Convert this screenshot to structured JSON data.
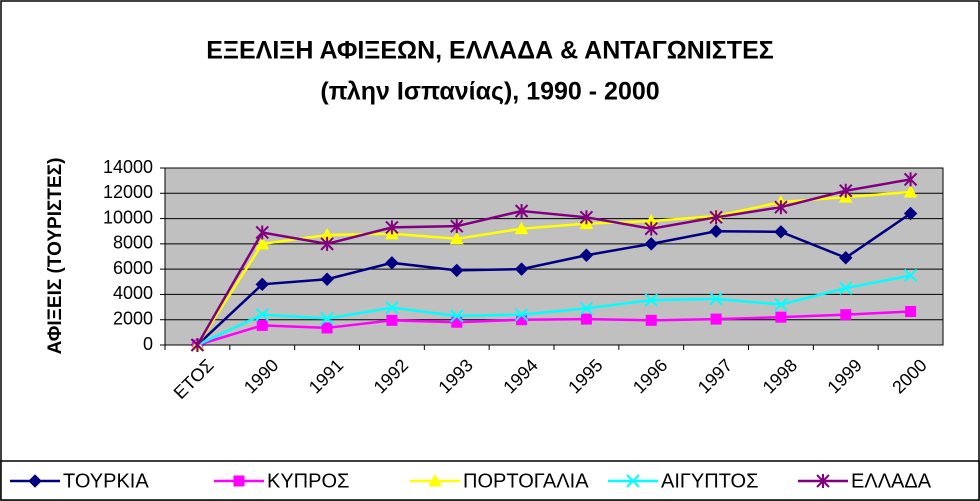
{
  "chart_data": {
    "type": "line",
    "title": [
      "ΕΞΕΛΙΞΗ ΑΦΙΞΕΩΝ, ΕΛΛΑΔΑ & ΑΝΤΑΓΩΝΙΣΤΕΣ",
      "(πλην Ισπανίας), 1990 - 2000"
    ],
    "y_label": "ΑΦΙΞΕΙΣ (ΤΟΥΡΙΣΤΕΣ)",
    "categories": [
      "ΕΤΟΣ",
      "1990",
      "1991",
      "1992",
      "1993",
      "1994",
      "1995",
      "1996",
      "1997",
      "1998",
      "1999",
      "2000"
    ],
    "series": [
      {
        "name": "ΤΟΥΡΚΙΑ",
        "color": "#000080",
        "marker": "diamond",
        "values": [
          0,
          4800,
          5200,
          6500,
          5900,
          6000,
          7100,
          8000,
          9000,
          8950,
          6900,
          10400
        ]
      },
      {
        "name": "ΚΥΠΡΟΣ",
        "color": "#ff00ff",
        "marker": "square",
        "values": [
          0,
          1550,
          1350,
          1950,
          1800,
          2000,
          2050,
          1950,
          2050,
          2200,
          2400,
          2650
        ]
      },
      {
        "name": "ΠΟΡΤΟΓΑΛΙΑ",
        "color": "#ffff00",
        "marker": "triangle",
        "values": [
          0,
          8000,
          8700,
          8800,
          8400,
          9200,
          9600,
          9800,
          10200,
          11300,
          11700,
          12100
        ]
      },
      {
        "name": "ΑΙΓΥΠΤΟΣ",
        "color": "#00ffff",
        "marker": "x",
        "values": [
          0,
          2400,
          2100,
          2950,
          2300,
          2400,
          2900,
          3550,
          3650,
          3200,
          4500,
          5500
        ]
      },
      {
        "name": "ΕΛΛΑΔΑ",
        "color": "#800080",
        "marker": "star",
        "values": [
          0,
          8900,
          8000,
          9300,
          9400,
          10600,
          10100,
          9200,
          10100,
          10900,
          12200,
          13100
        ]
      }
    ],
    "ylim": [
      0,
      14000
    ],
    "yticks": [
      0,
      2000,
      4000,
      6000,
      8000,
      10000,
      12000,
      14000
    ],
    "grid": true,
    "legend": "bottom",
    "plot_background": "#c0c0c0"
  }
}
